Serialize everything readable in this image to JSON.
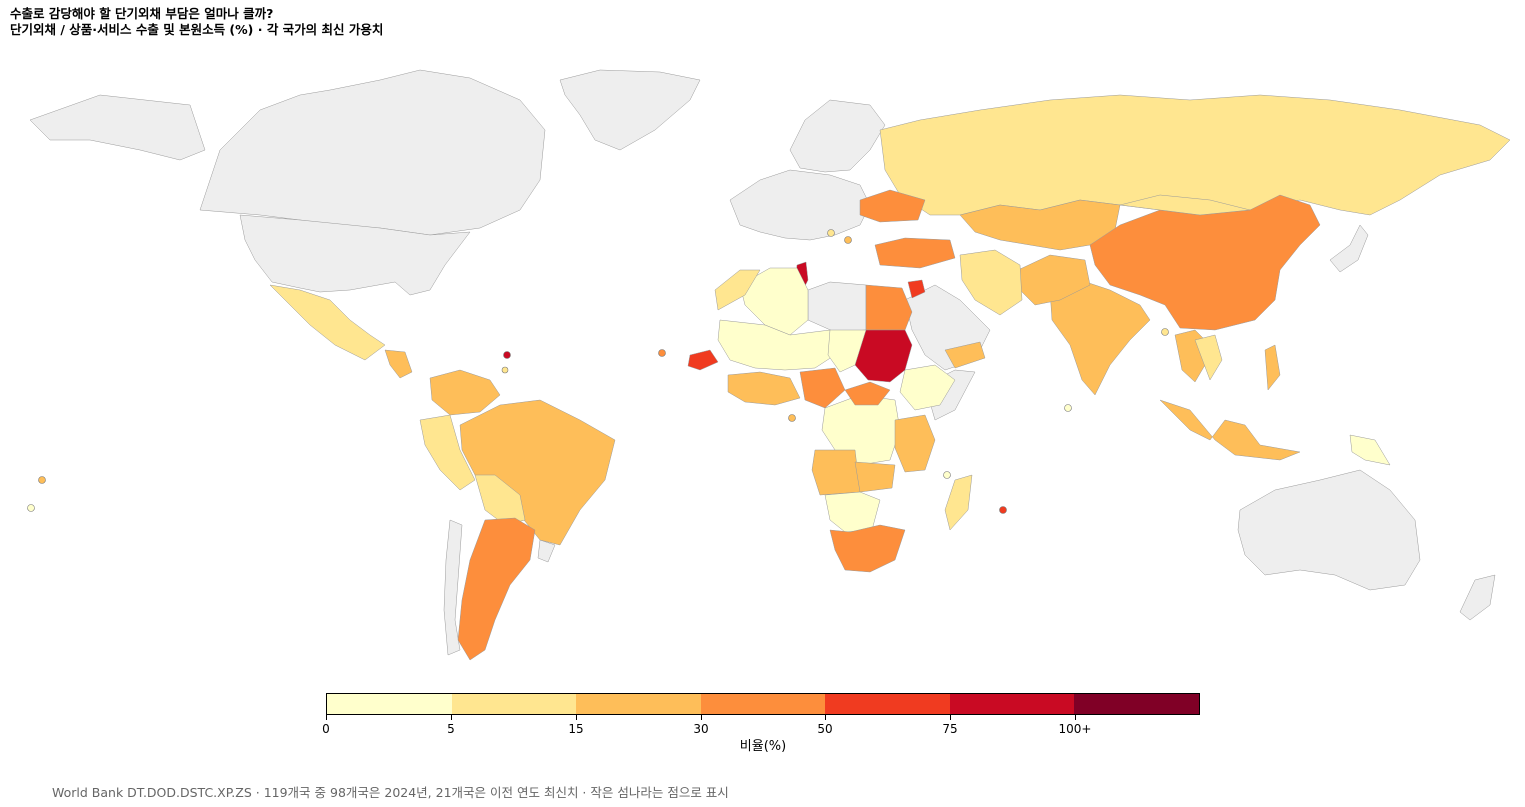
{
  "header": {
    "title": "수출로 감당해야 할 단기외채 부담은 얼마나 클까?",
    "subtitle": "단기외채 / 상품·서비스 수출 및 본원소득 (%) · 각 국가의 최신 가용치"
  },
  "legend": {
    "caption": "비율(%)",
    "ticks": [
      "0",
      "5",
      "15",
      "30",
      "50",
      "75",
      "100+"
    ],
    "bins": [
      {
        "from": 0,
        "to": 5,
        "color": "#ffffcc"
      },
      {
        "from": 5,
        "to": 15,
        "color": "#ffe690"
      },
      {
        "from": 15,
        "to": 30,
        "color": "#febe59"
      },
      {
        "from": 30,
        "to": 50,
        "color": "#fd8e3c"
      },
      {
        "from": 50,
        "to": 75,
        "color": "#f03b20"
      },
      {
        "from": 75,
        "to": 100,
        "color": "#c90a23"
      },
      {
        "from": 100,
        "to": null,
        "color": "#800026"
      }
    ],
    "no_data_color": "#eeeeee"
  },
  "footnote": "World Bank DT.DOD.DSTC.XP.ZS · 119개국 중 98개국은 2024년, 21개국은 이전 연도 최신치 · 작은 섬나라는 점으로 표시",
  "chart_data": {
    "type": "choropleth",
    "metric": "단기외채 / 상품·서비스 수출 및 본원소득 (%)",
    "countries_total": 119,
    "countries_2024": 98,
    "countries_earlier": 21,
    "estimated_bins": [
      {
        "country": "Tunisia",
        "bin": "75-100"
      },
      {
        "country": "Sudan",
        "bin": "75-100"
      },
      {
        "country": "Lebanon",
        "bin": "75-100"
      },
      {
        "country": "Jordan",
        "bin": "50-75"
      },
      {
        "country": "Senegal",
        "bin": "50-75"
      },
      {
        "country": "Egypt",
        "bin": "30-50"
      },
      {
        "country": "China",
        "bin": "30-50"
      },
      {
        "country": "Turkey",
        "bin": "30-50"
      },
      {
        "country": "Argentina",
        "bin": "30-50"
      },
      {
        "country": "South Africa",
        "bin": "30-50"
      },
      {
        "country": "Nigeria",
        "bin": "30-50"
      },
      {
        "country": "Ukraine",
        "bin": "30-50"
      },
      {
        "country": "Ethiopia",
        "bin": "0-5"
      },
      {
        "country": "Kazakhstan",
        "bin": "15-30"
      },
      {
        "country": "India",
        "bin": "15-30"
      },
      {
        "country": "Brazil",
        "bin": "15-30"
      },
      {
        "country": "Indonesia",
        "bin": "15-30"
      },
      {
        "country": "Russia",
        "bin": "5-15"
      },
      {
        "country": "Mexico",
        "bin": "5-15"
      },
      {
        "country": "Iran",
        "bin": "5-15"
      },
      {
        "country": "Mali",
        "bin": "0-5"
      },
      {
        "country": "Niger",
        "bin": "0-5"
      },
      {
        "country": "Chad",
        "bin": "0-5"
      },
      {
        "country": "Algeria",
        "bin": "0-5"
      }
    ]
  }
}
